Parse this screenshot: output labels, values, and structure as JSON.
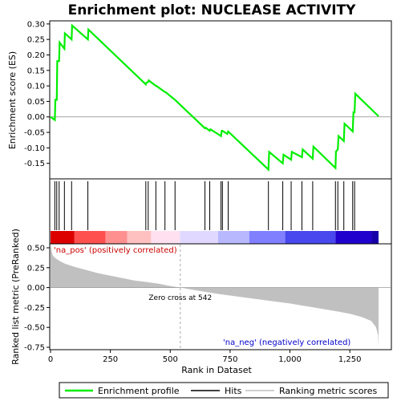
{
  "chart_data": {
    "type": "line",
    "title": "Enrichment plot: NUCLEASE ACTIVITY",
    "top_panel": {
      "ylabel": "Enrichment score (ES)",
      "ylim": [
        -0.2,
        0.31
      ],
      "yticks": [
        "0.30",
        "0.25",
        "0.20",
        "0.15",
        "0.10",
        "0.05",
        "0.00",
        "-0.05",
        "-0.10",
        "-0.15"
      ],
      "ytick_values": [
        0.3,
        0.25,
        0.2,
        0.15,
        0.1,
        0.05,
        0.0,
        -0.05,
        -0.1,
        -0.15
      ],
      "series": [
        {
          "name": "Enrichment profile",
          "color": "#00ee00",
          "points": [
            [
              0,
              0.0
            ],
            [
              18,
              -0.01
            ],
            [
              20,
              0.055
            ],
            [
              26,
              0.055
            ],
            [
              28,
              0.18
            ],
            [
              36,
              0.18
            ],
            [
              38,
              0.24
            ],
            [
              58,
              0.22
            ],
            [
              60,
              0.27
            ],
            [
              88,
              0.25
            ],
            [
              90,
              0.295
            ],
            [
              156,
              0.25
            ],
            [
              158,
              0.282
            ],
            [
              398,
              0.105
            ],
            [
              400,
              0.11
            ],
            [
              408,
              0.113
            ],
            [
              410,
              0.118
            ],
            [
              440,
              0.1
            ],
            [
              442,
              0.1
            ],
            [
              478,
              0.08
            ],
            [
              480,
              0.08
            ],
            [
              520,
              0.055
            ],
            [
              645,
              -0.037
            ],
            [
              648,
              -0.035
            ],
            [
              665,
              -0.045
            ],
            [
              668,
              -0.04
            ],
            [
              712,
              -0.062
            ],
            [
              715,
              -0.045
            ],
            [
              718,
              -0.045
            ],
            [
              738,
              -0.055
            ],
            [
              742,
              -0.047
            ],
            [
              910,
              -0.17
            ],
            [
              913,
              -0.113
            ],
            [
              970,
              -0.15
            ],
            [
              973,
              -0.122
            ],
            [
              1005,
              -0.138
            ],
            [
              1008,
              -0.113
            ],
            [
              1050,
              -0.13
            ],
            [
              1053,
              -0.105
            ],
            [
              1095,
              -0.135
            ],
            [
              1098,
              -0.096
            ],
            [
              1190,
              -0.165
            ],
            [
              1192,
              -0.112
            ],
            [
              1200,
              -0.105
            ],
            [
              1203,
              -0.062
            ],
            [
              1225,
              -0.078
            ],
            [
              1228,
              -0.022
            ],
            [
              1262,
              -0.047
            ],
            [
              1265,
              0.015
            ],
            [
              1270,
              0.015
            ],
            [
              1273,
              0.075
            ],
            [
              1370,
              0.002
            ]
          ]
        }
      ]
    },
    "hits": {
      "name": "Hits",
      "positions": [
        18,
        26,
        36,
        58,
        88,
        156,
        398,
        408,
        440,
        478,
        520,
        645,
        665,
        712,
        718,
        742,
        910,
        970,
        1005,
        1050,
        1095,
        1190,
        1200,
        1225,
        1262,
        1270
      ]
    },
    "bottom_panel": {
      "ylabel": "Ranked list metric (PreRanked)",
      "xlabel": "Rank in Dataset",
      "ylim": [
        -0.78,
        0.55
      ],
      "yticks": [
        "0.50",
        "0.25",
        "0.00",
        "-0.25",
        "-0.50",
        "-0.75"
      ],
      "ytick_values": [
        0.5,
        0.25,
        0.0,
        -0.25,
        -0.5,
        -0.75
      ],
      "xlim": [
        0,
        1370
      ],
      "xticks": [
        "0",
        "250",
        "500",
        "750",
        "1,000",
        "1,250"
      ],
      "xtick_values": [
        0,
        250,
        500,
        750,
        1000,
        1250
      ],
      "series_name": "Ranking metric scores",
      "series_color": "#c0c0c0",
      "profile": [
        [
          0,
          0.55
        ],
        [
          5,
          0.45
        ],
        [
          10,
          0.4
        ],
        [
          20,
          0.37
        ],
        [
          40,
          0.33
        ],
        [
          60,
          0.3
        ],
        [
          100,
          0.26
        ],
        [
          150,
          0.22
        ],
        [
          200,
          0.18
        ],
        [
          250,
          0.15
        ],
        [
          300,
          0.12
        ],
        [
          350,
          0.09
        ],
        [
          400,
          0.07
        ],
        [
          450,
          0.05
        ],
        [
          500,
          0.02
        ],
        [
          542,
          0.0
        ],
        [
          600,
          -0.03
        ],
        [
          700,
          -0.08
        ],
        [
          800,
          -0.12
        ],
        [
          900,
          -0.16
        ],
        [
          1000,
          -0.2
        ],
        [
          1100,
          -0.25
        ],
        [
          1200,
          -0.3
        ],
        [
          1250,
          -0.33
        ],
        [
          1300,
          -0.37
        ],
        [
          1340,
          -0.42
        ],
        [
          1360,
          -0.5
        ],
        [
          1368,
          -0.6
        ],
        [
          1370,
          -0.75
        ]
      ],
      "zero_cross_label": "Zero cross at 542",
      "zero_cross": 542,
      "pos_label": "'na_pos' (positively correlated)",
      "neg_label": "'na_neg' (negatively correlated)"
    },
    "heat_colors": [
      "#dd0000",
      "#ff5050",
      "#ff9090",
      "#ffc0c0",
      "#ffe0f0",
      "#e0d8ff",
      "#b8b8ff",
      "#8080ff",
      "#4848ee",
      "#2000cc",
      "#1800a8"
    ],
    "heat_breaks": [
      0,
      100,
      230,
      320,
      420,
      540,
      700,
      830,
      980,
      1190,
      1340,
      1370
    ],
    "legend": [
      {
        "label": "Enrichment profile",
        "color": "#00ee00"
      },
      {
        "label": "Hits",
        "color": "#000000"
      },
      {
        "label": "Ranking metric scores",
        "color": "#c0c0c0"
      }
    ]
  }
}
